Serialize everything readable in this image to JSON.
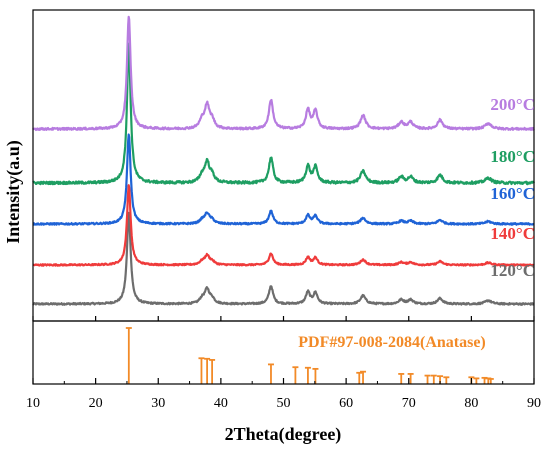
{
  "chart_data": {
    "type": "line",
    "xlabel": "2Theta(degree)",
    "ylabel": "Intensity(a.u)",
    "xlim": [
      10,
      90
    ],
    "xticks": [
      10,
      20,
      30,
      40,
      50,
      60,
      70,
      80,
      90
    ],
    "peaks": [
      {
        "pos": 25.3,
        "h": 1.0,
        "w": 0.35
      },
      {
        "pos": 37.0,
        "h": 0.07,
        "w": 0.5
      },
      {
        "pos": 37.8,
        "h": 0.2,
        "w": 0.45
      },
      {
        "pos": 38.6,
        "h": 0.07,
        "w": 0.45
      },
      {
        "pos": 48.0,
        "h": 0.26,
        "w": 0.4
      },
      {
        "pos": 53.9,
        "h": 0.17,
        "w": 0.4
      },
      {
        "pos": 55.1,
        "h": 0.16,
        "w": 0.4
      },
      {
        "pos": 62.7,
        "h": 0.12,
        "w": 0.5
      },
      {
        "pos": 68.8,
        "h": 0.06,
        "w": 0.5
      },
      {
        "pos": 70.3,
        "h": 0.06,
        "w": 0.5
      },
      {
        "pos": 75.0,
        "h": 0.08,
        "w": 0.5
      },
      {
        "pos": 82.7,
        "h": 0.05,
        "w": 0.6
      }
    ],
    "series": [
      {
        "name": "120°C",
        "color": "#6d6d6d",
        "scale": 0.75
      },
      {
        "name": "140°C",
        "color": "#ef3b3b",
        "scale": 0.55
      },
      {
        "name": "160°C",
        "color": "#1f63d6",
        "scale": 0.55
      },
      {
        "name": "180°C",
        "color": "#1e9e62",
        "scale": 0.7
      },
      {
        "name": "200°C",
        "color": "#b77ce0",
        "scale": 1.0
      }
    ],
    "reference": {
      "name": "PDF#97-008-2084(Anatase)",
      "color": "#f28a27",
      "lines": [
        {
          "pos": 25.3,
          "h": 1.0
        },
        {
          "pos": 36.9,
          "h": 0.46
        },
        {
          "pos": 37.8,
          "h": 0.45
        },
        {
          "pos": 38.6,
          "h": 0.43
        },
        {
          "pos": 48.0,
          "h": 0.35
        },
        {
          "pos": 51.9,
          "h": 0.3
        },
        {
          "pos": 53.9,
          "h": 0.29
        },
        {
          "pos": 55.1,
          "h": 0.27
        },
        {
          "pos": 62.1,
          "h": 0.2
        },
        {
          "pos": 62.7,
          "h": 0.22
        },
        {
          "pos": 68.8,
          "h": 0.18
        },
        {
          "pos": 70.3,
          "h": 0.18
        },
        {
          "pos": 73.0,
          "h": 0.15
        },
        {
          "pos": 74.0,
          "h": 0.15
        },
        {
          "pos": 75.0,
          "h": 0.14
        },
        {
          "pos": 76.0,
          "h": 0.12
        },
        {
          "pos": 80.0,
          "h": 0.12
        },
        {
          "pos": 80.8,
          "h": 0.1
        },
        {
          "pos": 82.1,
          "h": 0.11
        },
        {
          "pos": 82.7,
          "h": 0.1
        },
        {
          "pos": 83.1,
          "h": 0.09
        }
      ]
    }
  }
}
